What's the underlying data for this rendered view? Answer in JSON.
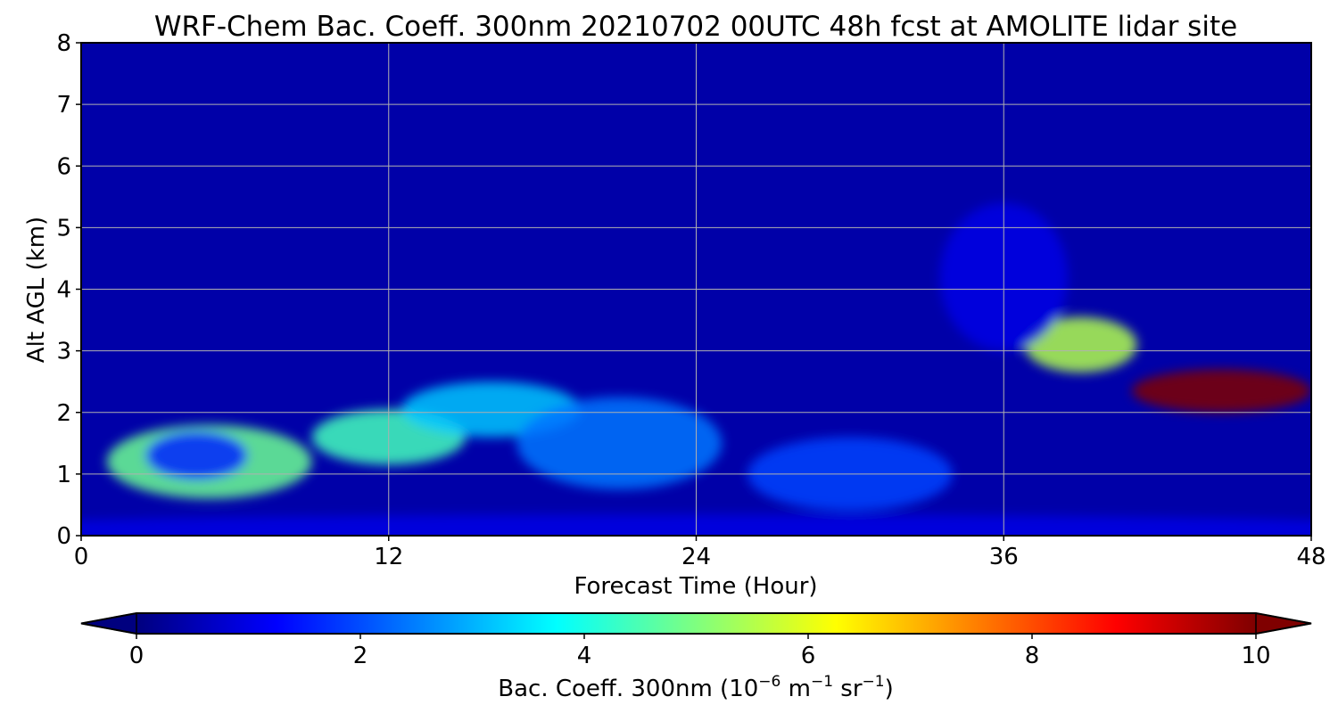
{
  "chart_data": {
    "type": "heatmap",
    "title": "WRF-Chem Bac. Coeff. 300nm  20210702 00UTC 48h fcst at AMOLITE lidar site",
    "xlabel": "Forecast Time (Hour)",
    "ylabel": "Alt AGL (km)",
    "xlim": [
      0,
      48
    ],
    "ylim": [
      0,
      8
    ],
    "x_ticks": [
      0,
      12,
      24,
      36,
      48
    ],
    "y_ticks": [
      0,
      1,
      2,
      3,
      4,
      5,
      6,
      7,
      8
    ],
    "grid": true,
    "colorbar": {
      "label_main": "Bac. Coeff. 300nm  (10",
      "label_exp1": "−6",
      "label_mid": " m",
      "label_exp2": "−1",
      "label_mid2": " sr",
      "label_exp3": "−1",
      "label_end": ")",
      "range": [
        0,
        10
      ],
      "ticks": [
        0,
        2,
        4,
        6,
        8,
        10
      ],
      "extend": "both",
      "colormap": "jet",
      "colors": {
        "under": "#00007f",
        "over": "#7f0000",
        "stops": [
          "#00007f",
          "#0000ff",
          "#007fff",
          "#00ffff",
          "#7fff7f",
          "#ffff00",
          "#ff7f00",
          "#ff0000",
          "#7f0000"
        ]
      }
    },
    "background_value": 0.4,
    "features": [
      {
        "name": "boundary-layer-aerosol",
        "x": 5,
        "y": 1.2,
        "sx": 4,
        "sy": 0.6,
        "value": 4.8
      },
      {
        "name": "boundary-layer-core",
        "x": 4.5,
        "y": 1.3,
        "sx": 2,
        "sy": 0.4,
        "value": 1.6
      },
      {
        "name": "morning-layer-12h",
        "x": 12,
        "y": 1.6,
        "sx": 3,
        "sy": 0.45,
        "value": 4.4
      },
      {
        "name": "elevated-layer-16h",
        "x": 16,
        "y": 2.05,
        "sx": 3.5,
        "sy": 0.45,
        "value": 3.2
      },
      {
        "name": "transition-21h",
        "x": 21,
        "y": 1.5,
        "sx": 4,
        "sy": 0.75,
        "value": 2.4
      },
      {
        "name": "lower-layer-30h",
        "x": 30,
        "y": 1.0,
        "sx": 4,
        "sy": 0.6,
        "value": 1.9
      },
      {
        "name": "smoke-plume-39h",
        "x": 39,
        "y": 3.1,
        "sx": 2.2,
        "sy": 0.45,
        "value": 5.5
      },
      {
        "name": "smoke-plume-core",
        "x": 44.5,
        "y": 2.35,
        "sx": 3.5,
        "sy": 0.35,
        "value": 11.5
      },
      {
        "name": "residual-layer-36h",
        "x": 36,
        "y": 4.2,
        "sx": 2.5,
        "sy": 1.2,
        "value": 1.0
      },
      {
        "name": "surface-layer",
        "x": 24,
        "y": 0.1,
        "sx": 30,
        "sy": 0.25,
        "value": 1.0
      }
    ]
  }
}
